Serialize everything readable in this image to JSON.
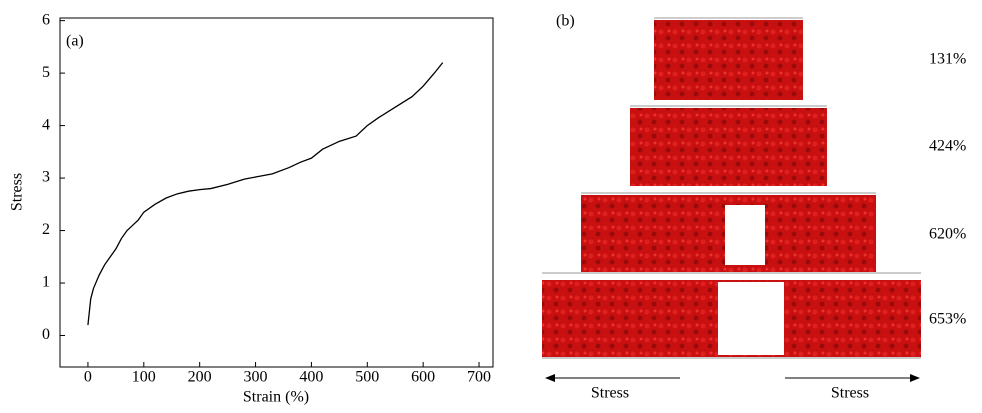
{
  "chart_data": {
    "type": "line",
    "panel_label": "(a)",
    "xlabel": "Strain (%)",
    "ylabel": "Stress",
    "x": [
      0,
      5,
      10,
      20,
      30,
      40,
      50,
      60,
      70,
      80,
      90,
      100,
      120,
      140,
      160,
      180,
      200,
      220,
      250,
      280,
      300,
      330,
      360,
      380,
      400,
      420,
      450,
      480,
      500,
      520,
      550,
      580,
      600,
      620,
      635
    ],
    "series": [
      {
        "name": "Stress",
        "color": "#000000",
        "values": [
          0.2,
          0.7,
          0.9,
          1.15,
          1.35,
          1.5,
          1.65,
          1.85,
          2.0,
          2.1,
          2.2,
          2.35,
          2.5,
          2.62,
          2.7,
          2.75,
          2.78,
          2.8,
          2.88,
          2.98,
          3.02,
          3.08,
          3.2,
          3.3,
          3.38,
          3.55,
          3.7,
          3.8,
          4.0,
          4.15,
          4.35,
          4.55,
          4.75,
          5.0,
          5.2
        ]
      }
    ],
    "xlim": [
      -50,
      725
    ],
    "ylim": [
      -0.6,
      6.05
    ],
    "xticks": [
      0,
      100,
      200,
      300,
      400,
      500,
      600,
      700
    ],
    "yticks": [
      0,
      1,
      2,
      3,
      4,
      5,
      6
    ]
  },
  "panel_b": {
    "label": "(b)",
    "strains": [
      "131%",
      "424%",
      "620%",
      "653%"
    ],
    "arrow_left": "Stress",
    "arrow_right": "Stress"
  }
}
